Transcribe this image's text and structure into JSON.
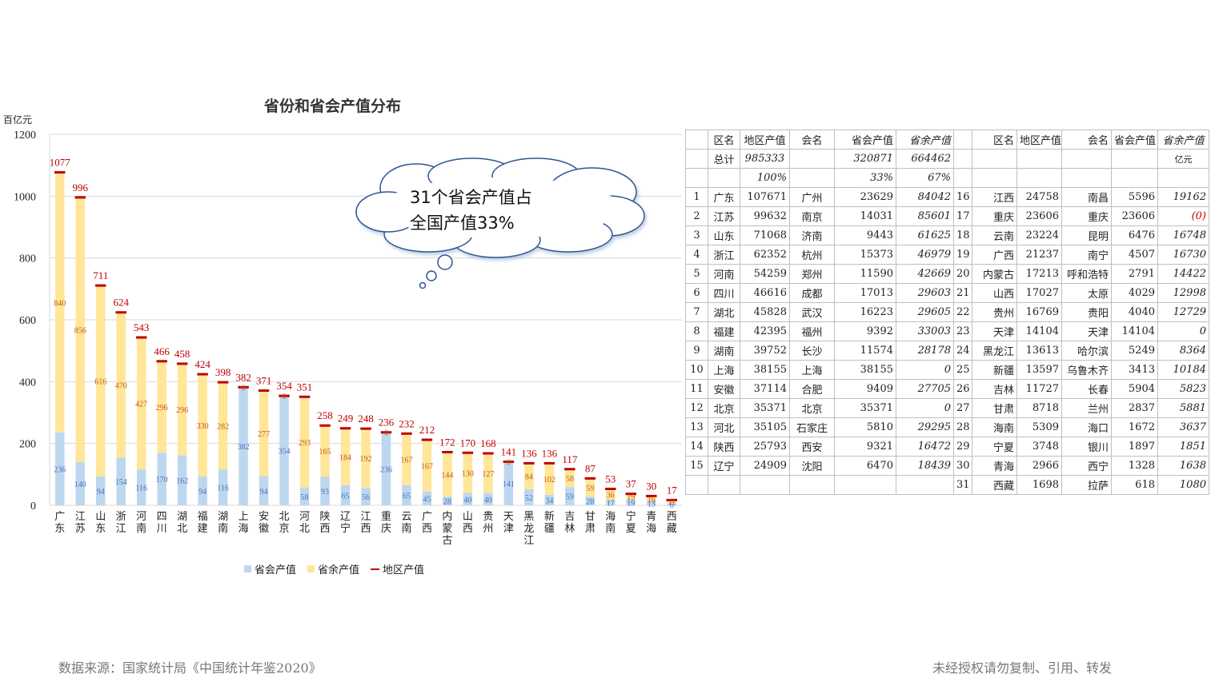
{
  "page": {
    "footer_source": "数据来源：国家统计局《中国统计年鉴2020》",
    "footer_notice": "未经授权请勿复制、引用、转发",
    "callout_line1": "31个省会产值占",
    "callout_line2": "全国产值33%"
  },
  "colors": {
    "capital": "#bdd7ee",
    "rest": "#ffe699",
    "region": "#c00000"
  },
  "chart_data": {
    "type": "bar",
    "title": "省份和省会产值分布",
    "ylabel": "百亿元",
    "ylim": [
      0,
      1200
    ],
    "yticks": [
      "0",
      "200",
      "400",
      "600",
      "800",
      "1000",
      "1200"
    ],
    "grid": true,
    "legend_position": "bottom",
    "legend": [
      "省会产值",
      "省余产值",
      "地区产值"
    ],
    "categories": [
      "广东",
      "江苏",
      "山东",
      "浙江",
      "河南",
      "四川",
      "湖北",
      "福建",
      "湖南",
      "上海",
      "安徽",
      "北京",
      "河北",
      "陕西",
      "辽宁",
      "江西",
      "重庆",
      "云南",
      "广西",
      "内蒙古",
      "山西",
      "贵州",
      "天津",
      "黑龙江",
      "新疆",
      "吉林",
      "甘肃",
      "海南",
      "宁夏",
      "青海",
      "西藏"
    ],
    "series": [
      {
        "name": "省会产值",
        "values": [
          236,
          140,
          94,
          154,
          116,
          170,
          162,
          94,
          116,
          382,
          94,
          354,
          58,
          93,
          65,
          56,
          236,
          65,
          45,
          28,
          40,
          40,
          141,
          52,
          34,
          59,
          28,
          17,
          19,
          13,
          6
        ]
      },
      {
        "name": "省余产值",
        "values": [
          840,
          856,
          616,
          470,
          427,
          296,
          296,
          330,
          282,
          0,
          277,
          0,
          293,
          165,
          184,
          192,
          0,
          167,
          167,
          144,
          130,
          127,
          0,
          84,
          102,
          58,
          59,
          36,
          19,
          16,
          11
        ]
      },
      {
        "name": "地区产值",
        "values": [
          1077,
          996,
          711,
          624,
          543,
          466,
          458,
          424,
          398,
          382,
          371,
          354,
          351,
          258,
          249,
          248,
          236,
          232,
          212,
          172,
          170,
          168,
          141,
          136,
          136,
          117,
          87,
          53,
          37,
          30,
          17
        ]
      }
    ]
  },
  "table": {
    "headers_left": [
      "",
      "区名",
      "地区产值",
      "会名",
      "省会产值",
      "省余产值"
    ],
    "headers_right": [
      "",
      "区名",
      "地区产值",
      "会名",
      "省会产值",
      "省余产值"
    ],
    "total": {
      "label": "总计",
      "region": "985333",
      "capital": "320871",
      "rest": "664462"
    },
    "pct": {
      "region": "100%",
      "capital": "33%",
      "rest": "67%"
    },
    "unit": "亿元",
    "rows_left": [
      {
        "n": "1",
        "prov": "广东",
        "gdp": "107671",
        "cap": "广州",
        "cap_gdp": "23629",
        "rest": "84042"
      },
      {
        "n": "2",
        "prov": "江苏",
        "gdp": "99632",
        "cap": "南京",
        "cap_gdp": "14031",
        "rest": "85601"
      },
      {
        "n": "3",
        "prov": "山东",
        "gdp": "71068",
        "cap": "济南",
        "cap_gdp": "9443",
        "rest": "61625"
      },
      {
        "n": "4",
        "prov": "浙江",
        "gdp": "62352",
        "cap": "杭州",
        "cap_gdp": "15373",
        "rest": "46979"
      },
      {
        "n": "5",
        "prov": "河南",
        "gdp": "54259",
        "cap": "郑州",
        "cap_gdp": "11590",
        "rest": "42669"
      },
      {
        "n": "6",
        "prov": "四川",
        "gdp": "46616",
        "cap": "成都",
        "cap_gdp": "17013",
        "rest": "29603"
      },
      {
        "n": "7",
        "prov": "湖北",
        "gdp": "45828",
        "cap": "武汉",
        "cap_gdp": "16223",
        "rest": "29605"
      },
      {
        "n": "8",
        "prov": "福建",
        "gdp": "42395",
        "cap": "福州",
        "cap_gdp": "9392",
        "rest": "33003"
      },
      {
        "n": "9",
        "prov": "湖南",
        "gdp": "39752",
        "cap": "长沙",
        "cap_gdp": "11574",
        "rest": "28178"
      },
      {
        "n": "10",
        "prov": "上海",
        "gdp": "38155",
        "cap": "上海",
        "cap_gdp": "38155",
        "rest": "0"
      },
      {
        "n": "11",
        "prov": "安徽",
        "gdp": "37114",
        "cap": "合肥",
        "cap_gdp": "9409",
        "rest": "27705"
      },
      {
        "n": "12",
        "prov": "北京",
        "gdp": "35371",
        "cap": "北京",
        "cap_gdp": "35371",
        "rest": "0"
      },
      {
        "n": "13",
        "prov": "河北",
        "gdp": "35105",
        "cap": "石家庄",
        "cap_gdp": "5810",
        "rest": "29295"
      },
      {
        "n": "14",
        "prov": "陕西",
        "gdp": "25793",
        "cap": "西安",
        "cap_gdp": "9321",
        "rest": "16472"
      },
      {
        "n": "15",
        "prov": "辽宁",
        "gdp": "24909",
        "cap": "沈阳",
        "cap_gdp": "6470",
        "rest": "18439"
      }
    ],
    "rows_right": [
      {
        "n": "16",
        "prov": "江西",
        "gdp": "24758",
        "cap": "南昌",
        "cap_gdp": "5596",
        "rest": "19162"
      },
      {
        "n": "17",
        "prov": "重庆",
        "gdp": "23606",
        "cap": "重庆",
        "cap_gdp": "23606",
        "rest": "(0)"
      },
      {
        "n": "18",
        "prov": "云南",
        "gdp": "23224",
        "cap": "昆明",
        "cap_gdp": "6476",
        "rest": "16748"
      },
      {
        "n": "19",
        "prov": "广西",
        "gdp": "21237",
        "cap": "南宁",
        "cap_gdp": "4507",
        "rest": "16730"
      },
      {
        "n": "20",
        "prov": "内蒙古",
        "gdp": "17213",
        "cap": "呼和浩特",
        "cap_gdp": "2791",
        "rest": "14422"
      },
      {
        "n": "21",
        "prov": "山西",
        "gdp": "17027",
        "cap": "太原",
        "cap_gdp": "4029",
        "rest": "12998"
      },
      {
        "n": "22",
        "prov": "贵州",
        "gdp": "16769",
        "cap": "贵阳",
        "cap_gdp": "4040",
        "rest": "12729"
      },
      {
        "n": "23",
        "prov": "天津",
        "gdp": "14104",
        "cap": "天津",
        "cap_gdp": "14104",
        "rest": "0"
      },
      {
        "n": "24",
        "prov": "黑龙江",
        "gdp": "13613",
        "cap": "哈尔滨",
        "cap_gdp": "5249",
        "rest": "8364"
      },
      {
        "n": "25",
        "prov": "新疆",
        "gdp": "13597",
        "cap": "乌鲁木齐",
        "cap_gdp": "3413",
        "rest": "10184"
      },
      {
        "n": "26",
        "prov": "吉林",
        "gdp": "11727",
        "cap": "长春",
        "cap_gdp": "5904",
        "rest": "5823"
      },
      {
        "n": "27",
        "prov": "甘肃",
        "gdp": "8718",
        "cap": "兰州",
        "cap_gdp": "2837",
        "rest": "5881"
      },
      {
        "n": "28",
        "prov": "海南",
        "gdp": "5309",
        "cap": "海口",
        "cap_gdp": "1672",
        "rest": "3637"
      },
      {
        "n": "29",
        "prov": "宁夏",
        "gdp": "3748",
        "cap": "银川",
        "cap_gdp": "1897",
        "rest": "1851"
      },
      {
        "n": "30",
        "prov": "青海",
        "gdp": "2966",
        "cap": "西宁",
        "cap_gdp": "1328",
        "rest": "1638"
      },
      {
        "n": "31",
        "prov": "西藏",
        "gdp": "1698",
        "cap": "拉萨",
        "cap_gdp": "618",
        "rest": "1080"
      }
    ]
  }
}
